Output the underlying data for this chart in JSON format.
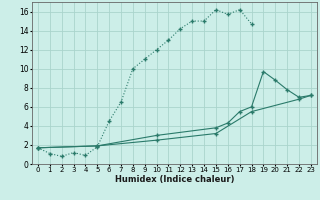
{
  "xlabel": "Humidex (Indice chaleur)",
  "bg_color": "#cceee8",
  "grid_color": "#aad4cc",
  "line_color": "#2a7a6a",
  "xlim": [
    -0.5,
    23.5
  ],
  "ylim": [
    0,
    17
  ],
  "xticks": [
    0,
    1,
    2,
    3,
    4,
    5,
    6,
    7,
    8,
    9,
    10,
    11,
    12,
    13,
    14,
    15,
    16,
    17,
    18,
    19,
    20,
    21,
    22,
    23
  ],
  "yticks": [
    0,
    2,
    4,
    6,
    8,
    10,
    12,
    14,
    16
  ],
  "line1_x": [
    0,
    1,
    2,
    3,
    4,
    5,
    6,
    7,
    8,
    9,
    10,
    11,
    12,
    13,
    14,
    15,
    16,
    17,
    18
  ],
  "line1_y": [
    1.7,
    1.1,
    0.8,
    1.2,
    0.9,
    1.8,
    4.5,
    6.5,
    10.0,
    11.0,
    12.0,
    13.0,
    14.2,
    15.0,
    15.0,
    16.2,
    15.7,
    16.2,
    14.7
  ],
  "line2_x": [
    0,
    5,
    10,
    15,
    16,
    17,
    18,
    19,
    20,
    21,
    22,
    23
  ],
  "line2_y": [
    1.7,
    1.9,
    3.0,
    3.8,
    4.3,
    5.5,
    6.0,
    9.7,
    8.8,
    7.8,
    7.0,
    7.2
  ],
  "line3_x": [
    0,
    5,
    10,
    15,
    18,
    22,
    23
  ],
  "line3_y": [
    1.7,
    1.9,
    2.5,
    3.2,
    5.5,
    6.8,
    7.2
  ]
}
